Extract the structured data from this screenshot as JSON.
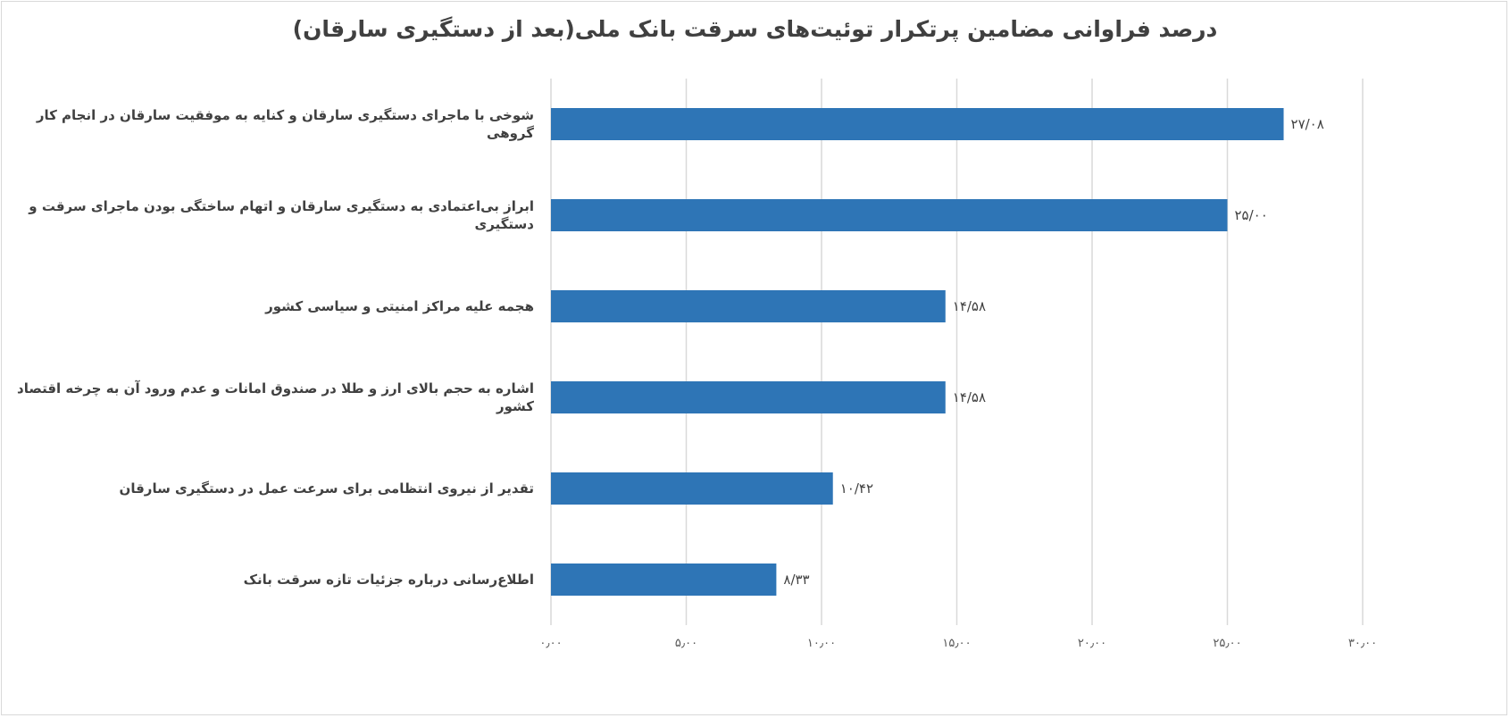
{
  "chart_data": {
    "type": "bar",
    "orientation": "horizontal",
    "title": "درصد فراوانی مضامین پرتکرار توئیت‌های سرقت بانک ملی(بعد از دستگیری سارقان)",
    "categories": [
      "شوخی با ماجرای دستگیری سارقان و کنایه به موفقیت سارقان در انجام کار گروهی",
      "ابراز بی‌اعتمادی به دستگیری سارقان و اتهام ساختگی بودن ماجرای سرقت و دستگیری",
      "هجمه علیه مراکز امنیتی و سیاسی کشور",
      "اشاره به حجم بالای ارز و طلا در صندوق امانات و عدم ورود آن به چرخه اقتصاد کشور",
      "تقدیر از نیروی انتظامی برای سرعت عمل در دستگیری سارقان",
      "اطلاع‌رسانی درباره جزئیات تازه سرقت بانک"
    ],
    "values": [
      27.08,
      25.0,
      14.58,
      14.58,
      10.42,
      8.33
    ],
    "data_labels": [
      "۲۷/۰۸",
      "۲۵/۰۰",
      "۱۴/۵۸",
      "۱۴/۵۸",
      "۱۰/۴۲",
      "۸/۳۳"
    ],
    "xlim": [
      0,
      30
    ],
    "xticks": [
      0,
      5,
      10,
      15,
      20,
      25,
      30
    ],
    "xtick_labels": [
      "۰٫۰۰",
      "۵٫۰۰",
      "۱۰٫۰۰",
      "۱۵٫۰۰",
      "۲۰٫۰۰",
      "۲۵٫۰۰",
      "۳۰٫۰۰"
    ],
    "grid": true,
    "legend": "none",
    "bar_color": "#2e75b6",
    "xlabel": "",
    "ylabel": ""
  }
}
